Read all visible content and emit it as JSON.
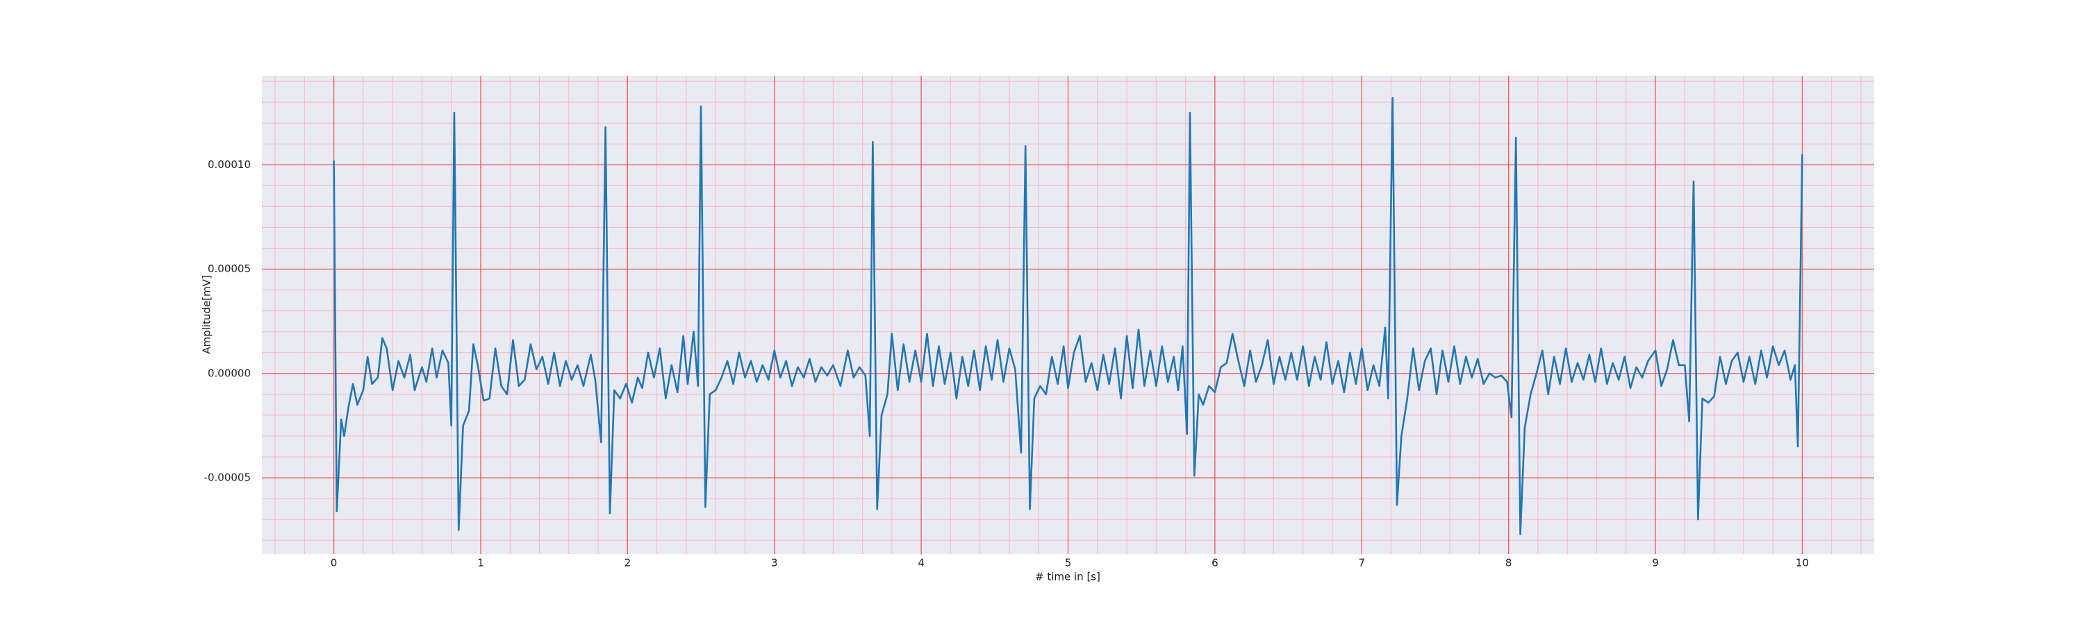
{
  "chart_data": {
    "type": "line",
    "xlabel": "# time in [s]",
    "ylabel": "Amplitude[mV]",
    "color": "#1f77b4",
    "background": "#eaeaf2",
    "major_grid_color": "#f05a5a",
    "minor_grid_color": "#f4b8c4",
    "grid": true,
    "minor_divisions": 5,
    "xlim": [
      -0.49,
      10.49
    ],
    "xticks": [
      0,
      1,
      2,
      3,
      4,
      5,
      6,
      7,
      8,
      9,
      10
    ],
    "ylim": [
      -8.66e-05,
      0.0001427
    ],
    "yticks": [
      {
        "value": -5e-05,
        "label": "-0.00005"
      },
      {
        "value": 0,
        "label": "0.00000"
      },
      {
        "value": 5e-05,
        "label": "0.00005"
      },
      {
        "value": 0.0001,
        "label": "0.00010"
      }
    ],
    "x": [
      0,
      0.02,
      0.05,
      0.07,
      0.1,
      0.13,
      0.16,
      0.2,
      0.23,
      0.26,
      0.3,
      0.33,
      0.36,
      0.4,
      0.44,
      0.48,
      0.52,
      0.55,
      0.6,
      0.63,
      0.67,
      0.7,
      0.74,
      0.78,
      0.8,
      0.82,
      0.85,
      0.88,
      0.92,
      0.95,
      0.98,
      1.02,
      1.06,
      1.1,
      1.14,
      1.18,
      1.22,
      1.26,
      1.3,
      1.34,
      1.38,
      1.42,
      1.46,
      1.5,
      1.54,
      1.58,
      1.62,
      1.66,
      1.7,
      1.75,
      1.78,
      1.82,
      1.85,
      1.88,
      1.91,
      1.95,
      1.99,
      2.03,
      2.07,
      2.1,
      2.14,
      2.18,
      2.22,
      2.26,
      2.3,
      2.34,
      2.38,
      2.41,
      2.45,
      2.48,
      2.5,
      2.53,
      2.56,
      2.6,
      2.64,
      2.68,
      2.72,
      2.76,
      2.8,
      2.84,
      2.88,
      2.92,
      2.96,
      3.0,
      3.04,
      3.08,
      3.12,
      3.16,
      3.2,
      3.24,
      3.28,
      3.32,
      3.36,
      3.4,
      3.45,
      3.5,
      3.54,
      3.58,
      3.62,
      3.65,
      3.67,
      3.7,
      3.73,
      3.77,
      3.8,
      3.84,
      3.88,
      3.92,
      3.96,
      4.0,
      4.04,
      4.08,
      4.12,
      4.16,
      4.2,
      4.24,
      4.28,
      4.32,
      4.36,
      4.4,
      4.44,
      4.48,
      4.52,
      4.56,
      4.6,
      4.64,
      4.68,
      4.71,
      4.74,
      4.77,
      4.81,
      4.85,
      4.89,
      4.93,
      4.97,
      5.0,
      5.04,
      5.08,
      5.12,
      5.16,
      5.2,
      5.24,
      5.28,
      5.32,
      5.36,
      5.4,
      5.44,
      5.48,
      5.52,
      5.56,
      5.6,
      5.64,
      5.68,
      5.72,
      5.75,
      5.78,
      5.81,
      5.83,
      5.86,
      5.89,
      5.92,
      5.96,
      6.0,
      6.04,
      6.08,
      6.12,
      6.16,
      6.2,
      6.24,
      6.28,
      6.32,
      6.36,
      6.4,
      6.44,
      6.48,
      6.52,
      6.56,
      6.6,
      6.64,
      6.68,
      6.72,
      6.76,
      6.8,
      6.84,
      6.88,
      6.92,
      6.96,
      7.0,
      7.04,
      7.08,
      7.12,
      7.16,
      7.18,
      7.21,
      7.24,
      7.27,
      7.31,
      7.35,
      7.39,
      7.43,
      7.47,
      7.51,
      7.55,
      7.59,
      7.63,
      7.67,
      7.71,
      7.75,
      7.79,
      7.83,
      7.87,
      7.91,
      7.95,
      7.99,
      8.02,
      8.05,
      8.08,
      8.11,
      8.15,
      8.19,
      8.23,
      8.27,
      8.31,
      8.35,
      8.39,
      8.43,
      8.47,
      8.51,
      8.55,
      8.59,
      8.63,
      8.67,
      8.71,
      8.75,
      8.79,
      8.83,
      8.87,
      8.91,
      8.95,
      9.0,
      9.04,
      9.08,
      9.12,
      9.16,
      9.2,
      9.23,
      9.26,
      9.29,
      9.32,
      9.36,
      9.4,
      9.44,
      9.48,
      9.52,
      9.56,
      9.6,
      9.64,
      9.68,
      9.72,
      9.76,
      9.8,
      9.84,
      9.88,
      9.92,
      9.95,
      9.97,
      10.0
    ],
    "values": [
      0.000102,
      -6.6e-05,
      -2.2e-05,
      -3e-05,
      -1.6e-05,
      -5e-06,
      -1.5e-05,
      -8e-06,
      8e-06,
      -5e-06,
      -2e-06,
      1.7e-05,
      1.2e-05,
      -8e-06,
      6e-06,
      -2e-06,
      9e-06,
      -8e-06,
      3e-06,
      -4e-06,
      1.2e-05,
      -2e-06,
      1.1e-05,
      5e-06,
      -2.5e-05,
      0.000125,
      -7.5e-05,
      -2.5e-05,
      -1.8e-05,
      1.4e-05,
      4e-06,
      -1.3e-05,
      -1.2e-05,
      1.2e-05,
      -6e-06,
      -1e-05,
      1.6e-05,
      -6e-06,
      -3e-06,
      1.4e-05,
      2e-06,
      8e-06,
      -5e-06,
      1e-05,
      -6e-06,
      6e-06,
      -3e-06,
      4e-06,
      -6e-06,
      9e-06,
      -3e-06,
      -3.3e-05,
      0.000118,
      -6.7e-05,
      -8e-06,
      -1.2e-05,
      -5e-06,
      -1.4e-05,
      -2e-06,
      -7e-06,
      1e-05,
      -2e-06,
      1.2e-05,
      -1.2e-05,
      4e-06,
      -9e-06,
      1.8e-05,
      -5e-06,
      2e-05,
      -6e-06,
      0.000128,
      -6.4e-05,
      -1e-05,
      -8e-06,
      -2e-06,
      6e-06,
      -5e-06,
      1e-05,
      -2e-06,
      6e-06,
      -4e-06,
      4e-06,
      -3e-06,
      1.1e-05,
      -2e-06,
      6e-06,
      -6e-06,
      3e-06,
      -2e-06,
      7e-06,
      -4e-06,
      3e-06,
      -1e-06,
      4e-06,
      -6e-06,
      1.1e-05,
      -2e-06,
      3e-06,
      -1e-06,
      -3e-05,
      0.000111,
      -6.5e-05,
      -2e-05,
      -1e-05,
      1.9e-05,
      -8e-06,
      1.4e-05,
      -4e-06,
      1.1e-05,
      -4e-06,
      1.9e-05,
      -6e-06,
      1.3e-05,
      -5e-06,
      1e-05,
      -1.2e-05,
      8e-06,
      -6e-06,
      1.1e-05,
      -8e-06,
      1.3e-05,
      -3e-06,
      1.6e-05,
      -4e-06,
      1.2e-05,
      2e-06,
      -3.8e-05,
      0.000109,
      -6.5e-05,
      -1.2e-05,
      -6e-06,
      -1e-05,
      8e-06,
      -5e-06,
      1.3e-05,
      -7e-06,
      1e-05,
      1.8e-05,
      -4e-06,
      5e-06,
      -8e-06,
      9e-06,
      -5e-06,
      1.2e-05,
      -1.2e-05,
      1.8e-05,
      -7e-06,
      2.1e-05,
      -6e-06,
      1.1e-05,
      -6e-06,
      1.3e-05,
      -4e-06,
      8e-06,
      -8e-06,
      1.3e-05,
      -2.9e-05,
      0.000125,
      -4.9e-05,
      -1e-05,
      -1.5e-05,
      -6e-06,
      -9e-06,
      3e-06,
      5e-06,
      1.9e-05,
      6e-06,
      -6e-06,
      1.1e-05,
      -4e-06,
      4e-06,
      1.6e-05,
      -5e-06,
      8e-06,
      -3e-06,
      1e-05,
      -3e-06,
      1.3e-05,
      -6e-06,
      8e-06,
      -3e-06,
      1.5e-05,
      -5e-06,
      6e-06,
      -9e-06,
      1e-05,
      -5e-06,
      1.2e-05,
      -8e-06,
      4e-06,
      -6e-06,
      2.2e-05,
      -1.2e-05,
      0.000132,
      -6.3e-05,
      -3e-05,
      -1.2e-05,
      1.2e-05,
      -8e-06,
      6e-06,
      1.2e-05,
      -1e-05,
      1.1e-05,
      -4e-06,
      1.3e-05,
      -5e-06,
      8e-06,
      -2e-06,
      7e-06,
      -5e-06,
      0,
      -2e-06,
      -1e-06,
      -4e-06,
      -2.1e-05,
      0.000113,
      -7.7e-05,
      -2.6e-05,
      -1e-05,
      0,
      1.1e-05,
      -1e-05,
      8e-06,
      -5e-06,
      1.2e-05,
      -4e-06,
      5e-06,
      -3e-06,
      9e-06,
      -4e-06,
      1.2e-05,
      -5e-06,
      5e-06,
      -3e-06,
      8e-06,
      -7e-06,
      3e-06,
      -2e-06,
      6e-06,
      1.1e-05,
      -6e-06,
      2e-06,
      1.6e-05,
      4e-06,
      4e-06,
      -2.3e-05,
      9.2e-05,
      -7e-05,
      -1.2e-05,
      -1.4e-05,
      -1.1e-05,
      8e-06,
      -5e-06,
      6e-06,
      1e-05,
      -4e-06,
      8e-06,
      -5e-06,
      1.1e-05,
      -2e-06,
      1.3e-05,
      4e-06,
      1.1e-05,
      -3e-06,
      4e-06,
      -3.5e-05,
      0.000105
    ]
  }
}
